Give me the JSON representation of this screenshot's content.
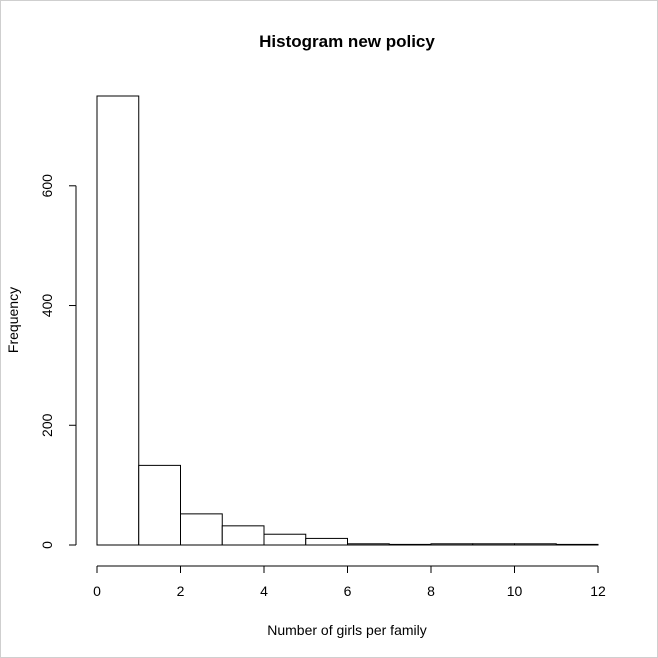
{
  "chart_data": {
    "type": "bar",
    "title": "Histogram new policy",
    "xlabel": "Number of girls per family",
    "ylabel": "Frequency",
    "bin_edges": [
      0,
      1,
      2,
      3,
      4,
      5,
      6,
      7,
      8,
      9,
      10,
      11,
      12
    ],
    "values": [
      750,
      133,
      52,
      32,
      18,
      11,
      2,
      1,
      2,
      2,
      2,
      1
    ],
    "xlim": [
      0,
      12
    ],
    "ylim": [
      0,
      750
    ],
    "x_ticks": [
      0,
      2,
      4,
      6,
      8,
      10,
      12
    ],
    "y_ticks": [
      0,
      200,
      400,
      600
    ],
    "grid": false,
    "bar_fill": "#ffffff",
    "bar_stroke": "#000000"
  }
}
